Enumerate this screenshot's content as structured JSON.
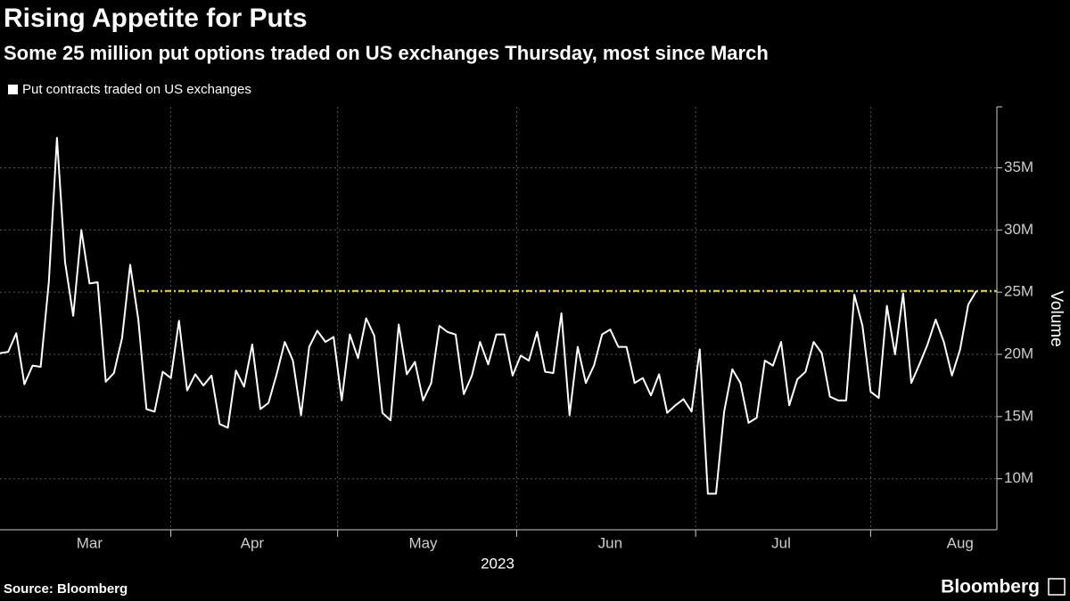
{
  "chart_data": {
    "type": "line",
    "title": "Rising Appetite for Puts",
    "subtitle": "Some 25 million put options traded on US exchanges Thursday, most since March",
    "y_label": "Volume",
    "x_label": "2023",
    "source": "Source: Bloomberg",
    "brand": "Bloomberg",
    "categories": [
      null,
      null,
      null,
      null,
      null,
      null,
      null,
      null,
      null,
      null,
      null,
      "Mar",
      null,
      null,
      null,
      null,
      null,
      null,
      null,
      null,
      null,
      null,
      null,
      null,
      null,
      null,
      null,
      null,
      null,
      null,
      null,
      "Apr",
      null,
      null,
      null,
      null,
      null,
      null,
      null,
      null,
      null,
      null,
      null,
      null,
      null,
      null,
      null,
      null,
      null,
      null,
      null,
      null,
      "May",
      null,
      null,
      null,
      null,
      null,
      null,
      null,
      null,
      null,
      null,
      null,
      null,
      null,
      null,
      null,
      null,
      null,
      null,
      null,
      null,
      null,
      null,
      "Jun",
      null,
      null,
      null,
      null,
      null,
      null,
      null,
      null,
      null,
      null,
      null,
      null,
      null,
      null,
      null,
      null,
      null,
      null,
      null,
      null,
      "Jul",
      null,
      null,
      null,
      null,
      null,
      null,
      null,
      null,
      null,
      null,
      null,
      null,
      null,
      null,
      null,
      null,
      null,
      null,
      null,
      null,
      null,
      "Aug",
      null,
      null
    ],
    "series": [
      {
        "name": "Put contracts traded on US exchanges",
        "color": "#ffffff",
        "values": [
          20.1,
          20.2,
          21.7,
          17.6,
          19.1,
          19.0,
          25.8,
          37.4,
          27.4,
          23.1,
          30.0,
          25.7,
          25.8,
          17.8,
          18.5,
          21.3,
          27.2,
          22.8,
          15.6,
          15.4,
          18.6,
          18.1,
          22.7,
          17.1,
          18.4,
          17.5,
          18.3,
          14.4,
          14.1,
          18.7,
          17.4,
          20.8,
          15.6,
          16.1,
          18.4,
          21.0,
          19.5,
          15.1,
          20.6,
          21.9,
          21.0,
          21.4,
          16.3,
          21.6,
          19.7,
          22.9,
          21.5,
          15.3,
          14.7,
          22.4,
          18.4,
          19.4,
          16.3,
          17.7,
          22.3,
          21.8,
          21.6,
          16.8,
          18.3,
          21.0,
          19.2,
          21.6,
          21.6,
          18.3,
          19.9,
          19.5,
          21.8,
          18.6,
          18.5,
          23.3,
          15.1,
          20.6,
          17.7,
          19.1,
          21.6,
          22.0,
          20.6,
          20.6,
          17.7,
          18.1,
          16.7,
          18.4,
          15.3,
          15.9,
          16.4,
          15.4,
          20.4,
          8.8,
          8.8,
          15.4,
          18.8,
          17.7,
          14.5,
          14.9,
          19.5,
          19.1,
          21.0,
          15.9,
          18.0,
          18.6,
          21.0,
          20.1,
          16.6,
          16.3,
          16.3,
          24.8,
          22.3,
          17.0,
          16.5,
          23.9,
          20.0,
          24.9,
          17.7,
          19.2,
          20.8,
          22.8,
          21.0,
          18.3,
          20.4,
          24.0,
          25.1
        ]
      }
    ],
    "reference_line": {
      "value": 25.1,
      "color": "#e8d44d"
    },
    "ylim": [
      5.9,
      39.9
    ],
    "yticks": [
      {
        "value": 10,
        "label": "10M"
      },
      {
        "value": 15,
        "label": "15M"
      },
      {
        "value": 20,
        "label": "20M"
      },
      {
        "value": 25,
        "label": "25M"
      },
      {
        "value": 30,
        "label": "30M"
      },
      {
        "value": 35,
        "label": "35M"
      }
    ],
    "grid": true
  }
}
